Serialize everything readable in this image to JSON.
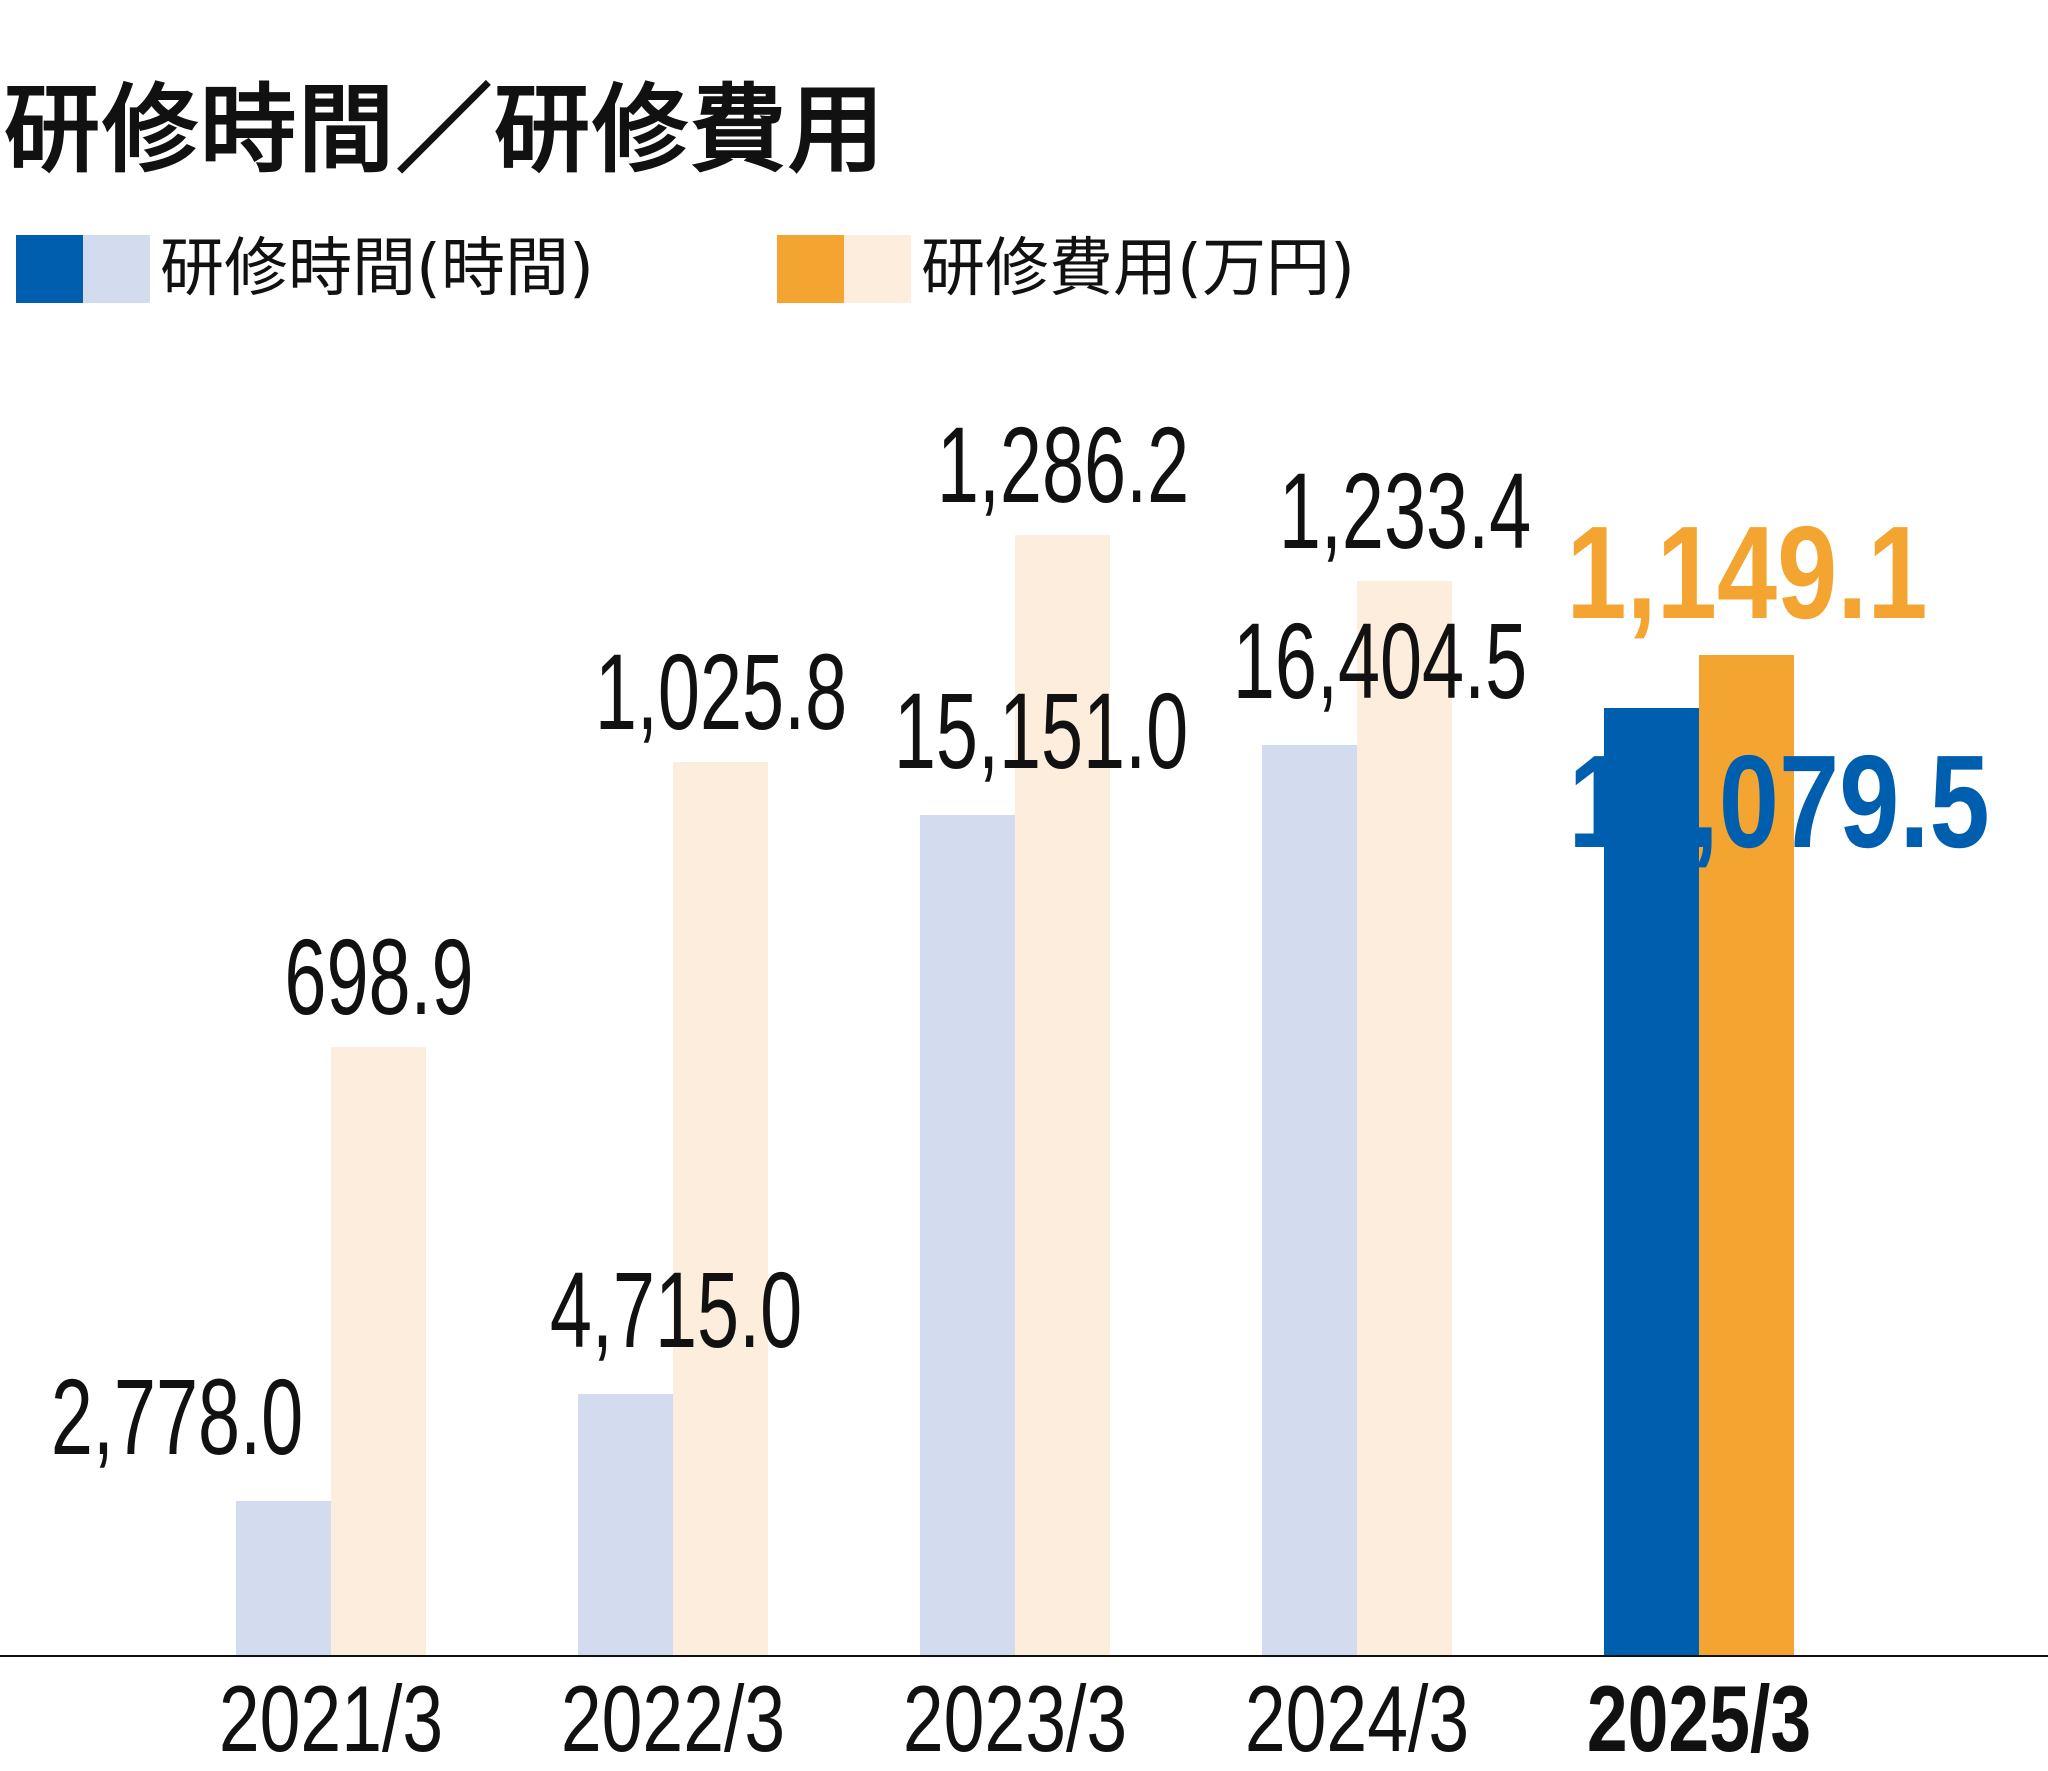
{
  "colors": {
    "hours_dark": "#005EAE",
    "hours_light": "#D3DCEE",
    "cost_dark": "#F4A531",
    "cost_light": "#FDEDDC"
  },
  "chart_data": {
    "type": "bar",
    "title": "研修時間／研修費用",
    "categories": [
      "2021/3",
      "2022/3",
      "2023/3",
      "2024/3",
      "2025/3"
    ],
    "highlight_category": "2025/3",
    "series": [
      {
        "name": "研修時間(時間)",
        "values": [
          2778.0,
          4715.0,
          15151.0,
          16404.5,
          17079.5
        ],
        "labels": [
          "2,778.0",
          "4,715.0",
          "15,151.0",
          "16,404.5",
          "17,079.5"
        ],
        "ylim": [
          0,
          25250
        ]
      },
      {
        "name": "研修費用(万円)",
        "values": [
          698.9,
          1025.8,
          1286.2,
          1233.4,
          1149.1
        ],
        "labels": [
          "698.9",
          "1,025.8",
          "1,286.2",
          "1,233.4",
          "1,149.1"
        ],
        "ylim": [
          0,
          1608
        ]
      }
    ],
    "legend": "top-left",
    "grid": false,
    "xlabel": "",
    "ylabel": ""
  }
}
